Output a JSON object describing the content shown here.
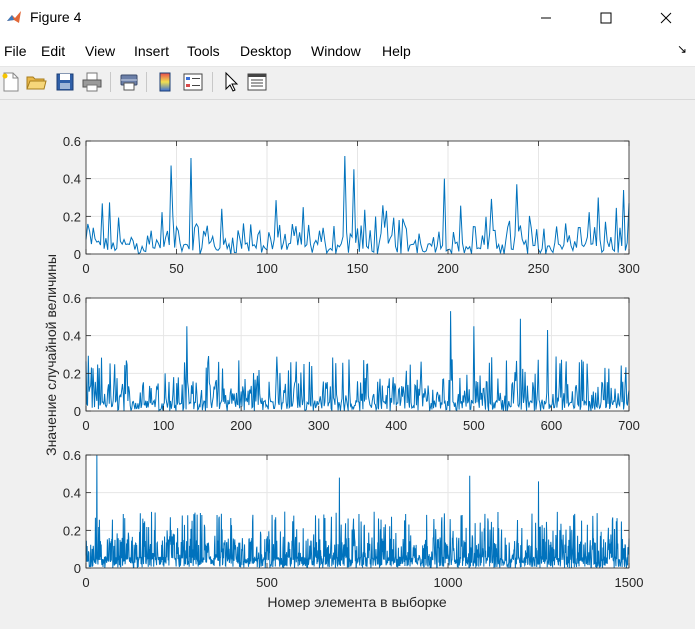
{
  "window": {
    "title": "Figure 4"
  },
  "menu": [
    "File",
    "Edit",
    "View",
    "Insert",
    "Tools",
    "Desktop",
    "Window",
    "Help"
  ],
  "toolbar_icons": [
    "new-figure-icon",
    "open-file-icon",
    "save-icon",
    "print-icon",
    "print-preview-icon",
    "colorbar-icon",
    "legend-icon",
    "select-arrow-icon",
    "property-inspector-icon"
  ],
  "figure": {
    "ylabel": "Значение случайной величины",
    "xlabel": "Номер элемента в выборке"
  },
  "chart_data": [
    {
      "type": "line",
      "n": 300,
      "xlim": [
        0,
        300
      ],
      "ylim": [
        0,
        0.6
      ],
      "xticks": [
        0,
        50,
        100,
        150,
        200,
        250,
        300
      ],
      "yticks": [
        0,
        0.2,
        0.4,
        0.6
      ],
      "ytick_labels": [
        "0",
        "0.2",
        "0.4",
        "0.6"
      ],
      "grid": true,
      "color": "#0072bd",
      "peaks": [
        [
          47,
          0.47
        ],
        [
          58,
          0.51
        ],
        [
          143,
          0.52
        ],
        [
          148,
          0.45
        ],
        [
          198,
          0.4
        ],
        [
          238,
          0.37
        ],
        [
          297,
          0.34
        ],
        [
          300,
          0.27
        ]
      ]
    },
    {
      "type": "line",
      "n": 700,
      "xlim": [
        0,
        700
      ],
      "ylim": [
        0,
        0.6
      ],
      "xticks": [
        0,
        100,
        200,
        300,
        400,
        500,
        600,
        700
      ],
      "yticks": [
        0,
        0.2,
        0.4,
        0.6
      ],
      "ytick_labels": [
        "0",
        "0.2",
        "0.4",
        "0.6"
      ],
      "grid": true,
      "color": "#0072bd",
      "peaks": [
        [
          130,
          0.45
        ],
        [
          470,
          0.53
        ],
        [
          560,
          0.49
        ],
        [
          595,
          0.43
        ],
        [
          500,
          0.45
        ]
      ]
    },
    {
      "type": "line",
      "n": 1500,
      "xlim": [
        0,
        1500
      ],
      "ylim": [
        0,
        0.6
      ],
      "xticks": [
        0,
        500,
        1000,
        1500
      ],
      "yticks": [
        0,
        0.2,
        0.4,
        0.6
      ],
      "ytick_labels": [
        "0",
        "0.2",
        "0.4",
        "0.6"
      ],
      "grid": true,
      "color": "#0072bd",
      "peaks": [
        [
          30,
          0.6
        ],
        [
          700,
          0.48
        ],
        [
          1060,
          0.49
        ],
        [
          1250,
          0.46
        ]
      ]
    }
  ]
}
